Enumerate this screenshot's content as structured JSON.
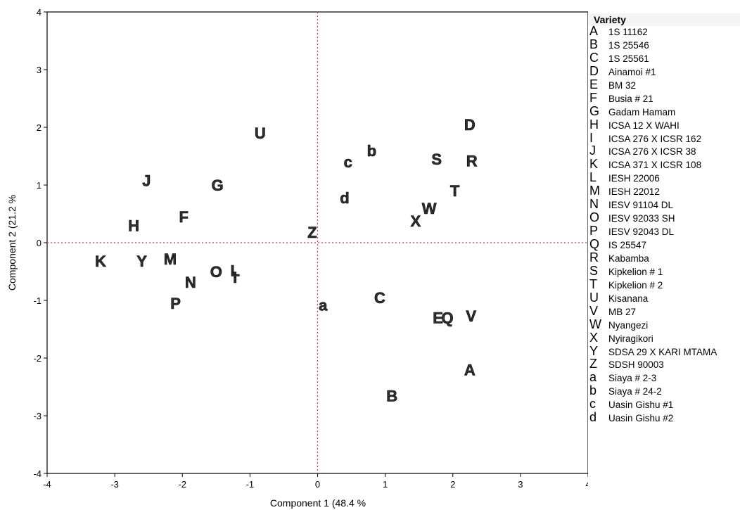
{
  "chart_data": {
    "type": "scatter",
    "xlabel": "Component 1  (48.4 %",
    "ylabel": "Component 2  (21.2 %",
    "xlim": [
      -4,
      4
    ],
    "ylim": [
      -4,
      4
    ],
    "xticks": [
      "-4",
      "-3",
      "-2",
      "-1",
      "0",
      "1",
      "2",
      "3",
      "4"
    ],
    "yticks": [
      "-4",
      "-3",
      "-2",
      "-1",
      "0",
      "1",
      "2",
      "3",
      "4"
    ],
    "reference_lines": {
      "x": 0,
      "y": 0,
      "color": "#e0304a",
      "style": "dotted"
    },
    "points": [
      {
        "label": "A",
        "x": 2.25,
        "y": -2.2
      },
      {
        "label": "B",
        "x": 1.1,
        "y": -2.65
      },
      {
        "label": "C",
        "x": 0.92,
        "y": -0.95
      },
      {
        "label": "D",
        "x": 2.25,
        "y": 2.05
      },
      {
        "label": "E",
        "x": 1.78,
        "y": -1.3
      },
      {
        "label": "F",
        "x": -1.98,
        "y": 0.45
      },
      {
        "label": "G",
        "x": -1.48,
        "y": 1.0
      },
      {
        "label": "H",
        "x": -2.72,
        "y": 0.3
      },
      {
        "label": "I",
        "x": -1.22,
        "y": -0.6
      },
      {
        "label": "J",
        "x": -2.53,
        "y": 1.08
      },
      {
        "label": "K",
        "x": -3.21,
        "y": -0.32
      },
      {
        "label": "L",
        "x": -1.22,
        "y": -0.48
      },
      {
        "label": "M",
        "x": -2.18,
        "y": -0.28
      },
      {
        "label": "N",
        "x": -1.88,
        "y": -0.68
      },
      {
        "label": "O",
        "x": -1.5,
        "y": -0.5
      },
      {
        "label": "P",
        "x": -2.1,
        "y": -1.05
      },
      {
        "label": "Q",
        "x": 1.92,
        "y": -1.3
      },
      {
        "label": "R",
        "x": 2.28,
        "y": 1.42
      },
      {
        "label": "S",
        "x": 1.76,
        "y": 1.45
      },
      {
        "label": "T",
        "x": 2.03,
        "y": 0.9
      },
      {
        "label": "U",
        "x": -0.85,
        "y": 1.9
      },
      {
        "label": "V",
        "x": 2.27,
        "y": -1.27
      },
      {
        "label": "W",
        "x": 1.65,
        "y": 0.6
      },
      {
        "label": "X",
        "x": 1.45,
        "y": 0.38
      },
      {
        "label": "Y",
        "x": -2.6,
        "y": -0.32
      },
      {
        "label": "Z",
        "x": -0.08,
        "y": 0.18
      },
      {
        "label": "a",
        "x": 0.08,
        "y": -1.08
      },
      {
        "label": "b",
        "x": 0.8,
        "y": 1.6
      },
      {
        "label": "c",
        "x": 0.45,
        "y": 1.4
      },
      {
        "label": "d",
        "x": 0.4,
        "y": 0.78
      }
    ],
    "colors": {
      "marker": "#303030",
      "reference": "#e0304a",
      "axis": "#000000"
    }
  },
  "legend": {
    "title": "Variety",
    "items": [
      {
        "code": "A",
        "name": "1S 11162"
      },
      {
        "code": "B",
        "name": "1S 25546"
      },
      {
        "code": "C",
        "name": "1S 25561"
      },
      {
        "code": "D",
        "name": "Ainamoi #1"
      },
      {
        "code": "E",
        "name": "BM 32"
      },
      {
        "code": "F",
        "name": "Busia # 21"
      },
      {
        "code": "G",
        "name": "Gadam Hamam"
      },
      {
        "code": "H",
        "name": "ICSA 12 X WAHI"
      },
      {
        "code": "I",
        "name": "ICSA 276 X ICSR 162"
      },
      {
        "code": "J",
        "name": "ICSA 276 X ICSR 38"
      },
      {
        "code": "K",
        "name": "ICSA 371 X ICSR 108"
      },
      {
        "code": "L",
        "name": "IESH 22006"
      },
      {
        "code": "M",
        "name": "IESH 22012"
      },
      {
        "code": "N",
        "name": "IESV 91104 DL"
      },
      {
        "code": "O",
        "name": "IESV 92033 SH"
      },
      {
        "code": "P",
        "name": "IESV 92043 DL"
      },
      {
        "code": "Q",
        "name": "IS 25547"
      },
      {
        "code": "R",
        "name": "Kabamba"
      },
      {
        "code": "S",
        "name": "Kipkelion # 1"
      },
      {
        "code": "T",
        "name": "Kipkelion # 2"
      },
      {
        "code": "U",
        "name": "Kisanana"
      },
      {
        "code": "V",
        "name": "MB 27"
      },
      {
        "code": "W",
        "name": "Nyangezi"
      },
      {
        "code": "X",
        "name": "Nyiragikori"
      },
      {
        "code": "Y",
        "name": "SDSA 29 X KARI MTAMA"
      },
      {
        "code": "Z",
        "name": "SDSH 90003"
      },
      {
        "code": "a",
        "name": "Siaya # 2-3"
      },
      {
        "code": "b",
        "name": "Siaya # 24-2"
      },
      {
        "code": "c",
        "name": "Uasin Gishu #1"
      },
      {
        "code": "d",
        "name": "Uasin Gishu #2"
      }
    ]
  }
}
